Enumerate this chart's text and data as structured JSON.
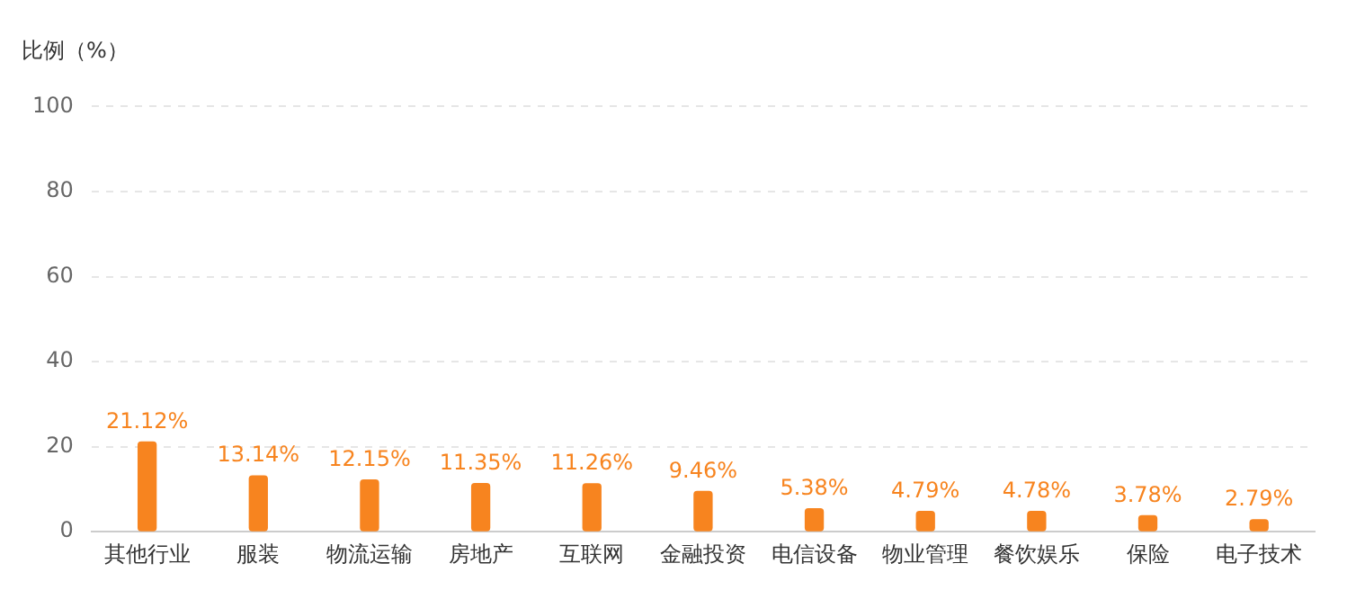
{
  "chart_data": {
    "type": "bar",
    "ylabel": "比例（%）",
    "categories": [
      "其他行业",
      "服装",
      "物流运输",
      "房地产",
      "互联网",
      "金融投资",
      "电信设备",
      "物业管理",
      "餐饮娱乐",
      "保险",
      "电子技术"
    ],
    "values": [
      21.12,
      13.14,
      12.15,
      11.35,
      11.26,
      9.46,
      5.38,
      4.79,
      4.78,
      3.78,
      2.79
    ],
    "value_labels": [
      "21.12%",
      "13.14%",
      "12.15%",
      "11.35%",
      "11.26%",
      "9.46%",
      "5.38%",
      "4.79%",
      "4.78%",
      "3.78%",
      "2.79%"
    ],
    "color": "#f7841f",
    "ylim": [
      0,
      100
    ],
    "yticks": [
      0,
      20,
      40,
      60,
      80,
      100
    ],
    "grid": "y"
  }
}
